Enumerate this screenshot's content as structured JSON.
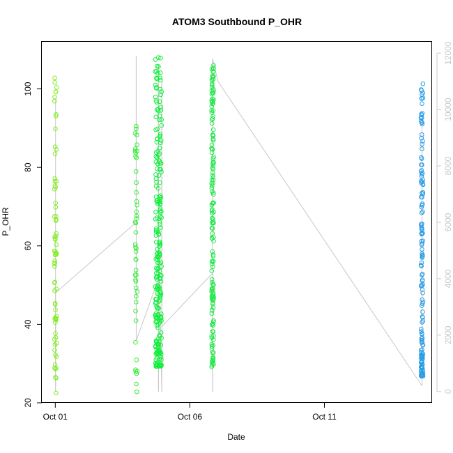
{
  "chart_data": {
    "type": "scatter",
    "title": "ATOM3 Southbound P_OHR",
    "xlabel": "Date",
    "ylabel": "P_OHR",
    "x_ticks": [
      "Oct 01",
      "Oct 06",
      "Oct 11"
    ],
    "x_tick_values": [
      "2016-10-01",
      "2016-10-06",
      "2016-10-11"
    ],
    "xlim": [
      "2016-09-30T12:00",
      "2016-10-15T00:00"
    ],
    "ylim": [
      20,
      112
    ],
    "y_ticks": [
      20,
      40,
      60,
      80,
      100
    ],
    "y2_ticks": [
      0,
      2000,
      4000,
      6000,
      8000,
      10000,
      12000
    ],
    "y2lim": [
      -400,
      12400
    ],
    "y2_color": "#c8c8c8",
    "grid": false,
    "legend": "none",
    "groups": [
      {
        "date": "2016-10-01T00:15",
        "color": "#80ee20",
        "min": 22.5,
        "max": 102.8
      },
      {
        "date": "2016-10-04T00:10",
        "color": "#36ec36",
        "min": 22.8,
        "max": 90.5
      },
      {
        "date": "2016-10-04T20:00",
        "color": "#12ee3c",
        "min": 29.3,
        "max": 108.0
      },
      {
        "date": "2016-10-06T20:20",
        "color": "#22e84a",
        "min": 29.2,
        "max": 106.0
      },
      {
        "date": "2016-10-14T15:00",
        "color": "#2a9ee6",
        "min": 26.8,
        "max": 101.3
      }
    ],
    "line_series": {
      "color": "#c8c8c8",
      "points": [
        {
          "x": "2016-10-01T00:15",
          "y2": 10400
        },
        {
          "x": "2016-10-01T00:15",
          "y2": 0
        },
        {
          "x": "2016-10-01T00:15",
          "y2": 3500
        },
        {
          "x": "2016-10-04T00:10",
          "y2": 6000
        },
        {
          "x": "2016-10-04T00:10",
          "y2": 11900
        },
        {
          "x": "2016-10-04T00:10",
          "y2": 1800
        },
        {
          "x": "2016-10-04T20:00",
          "y2": 4000
        },
        {
          "x": "2016-10-04T20:00",
          "y2": 0
        },
        {
          "x": "2016-10-04T20:00",
          "y2": 11600
        },
        {
          "x": "2016-10-04T20:00",
          "y2": 5500
        },
        {
          "x": "2016-10-04T23:00",
          "y2": 0
        },
        {
          "x": "2016-10-04T23:00",
          "y2": 11000
        },
        {
          "x": "2016-10-04T23:00",
          "y2": 2300
        },
        {
          "x": "2016-10-06T20:20",
          "y2": 4200
        },
        {
          "x": "2016-10-06T20:20",
          "y2": 0
        },
        {
          "x": "2016-10-06T20:20",
          "y2": 11800
        },
        {
          "x": "2016-10-07T01:00",
          "y2": 11000
        },
        {
          "x": "2016-10-14T15:00",
          "y2": 200
        },
        {
          "x": "2016-10-14T15:00",
          "y2": 9800
        },
        {
          "x": "2016-10-14T15:00",
          "y2": 800
        }
      ]
    }
  }
}
